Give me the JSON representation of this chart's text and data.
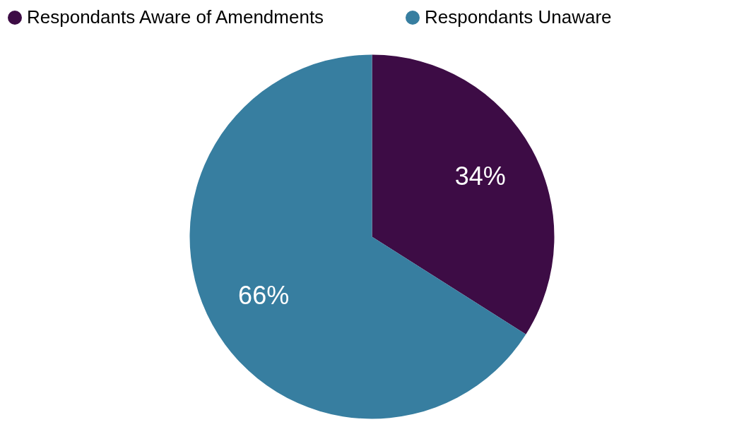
{
  "chart_data": {
    "type": "pie",
    "categories": [
      "Respondants Aware of Amendments",
      "Respondants Unaware"
    ],
    "values": [
      34,
      66
    ],
    "colors": [
      "#3d0c45",
      "#377ea0"
    ],
    "value_labels": [
      "34%",
      "66%"
    ],
    "legend": "top"
  }
}
